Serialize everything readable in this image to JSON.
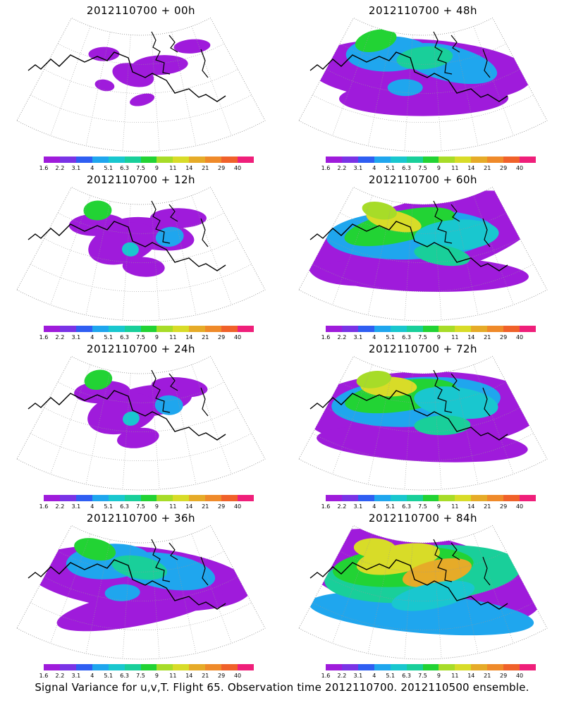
{
  "caption": "Signal Variance for u,v,T. Flight 65. Observation time 2012110700. 2012110500 ensemble.",
  "colorbar": {
    "labels": [
      "1.6",
      "2.2",
      "3.1",
      "4",
      "5.1",
      "6.3",
      "7.5",
      "9",
      "11",
      "14",
      "21",
      "29",
      "40"
    ],
    "colors": [
      "#9f1bdb",
      "#7a33e6",
      "#2f5ef2",
      "#1fa6ee",
      "#19c7cf",
      "#19cf9a",
      "#22d334",
      "#a7dc28",
      "#d8dc28",
      "#e6ab28",
      "#ef8a2a",
      "#f0612a",
      "#ef1f7a"
    ]
  },
  "panels": [
    {
      "title": "2012110700 + 00h",
      "lead_hours": 0,
      "intensity": 0
    },
    {
      "title": "2012110700 + 48h",
      "lead_hours": 48,
      "intensity": 2
    },
    {
      "title": "2012110700 + 12h",
      "lead_hours": 12,
      "intensity": 1
    },
    {
      "title": "2012110700 + 60h",
      "lead_hours": 60,
      "intensity": 3
    },
    {
      "title": "2012110700 + 24h",
      "lead_hours": 24,
      "intensity": 1
    },
    {
      "title": "2012110700 + 72h",
      "lead_hours": 72,
      "intensity": 3
    },
    {
      "title": "2012110700 + 36h",
      "lead_hours": 36,
      "intensity": 2
    },
    {
      "title": "2012110700 + 84h",
      "lead_hours": 84,
      "intensity": 4
    }
  ]
}
